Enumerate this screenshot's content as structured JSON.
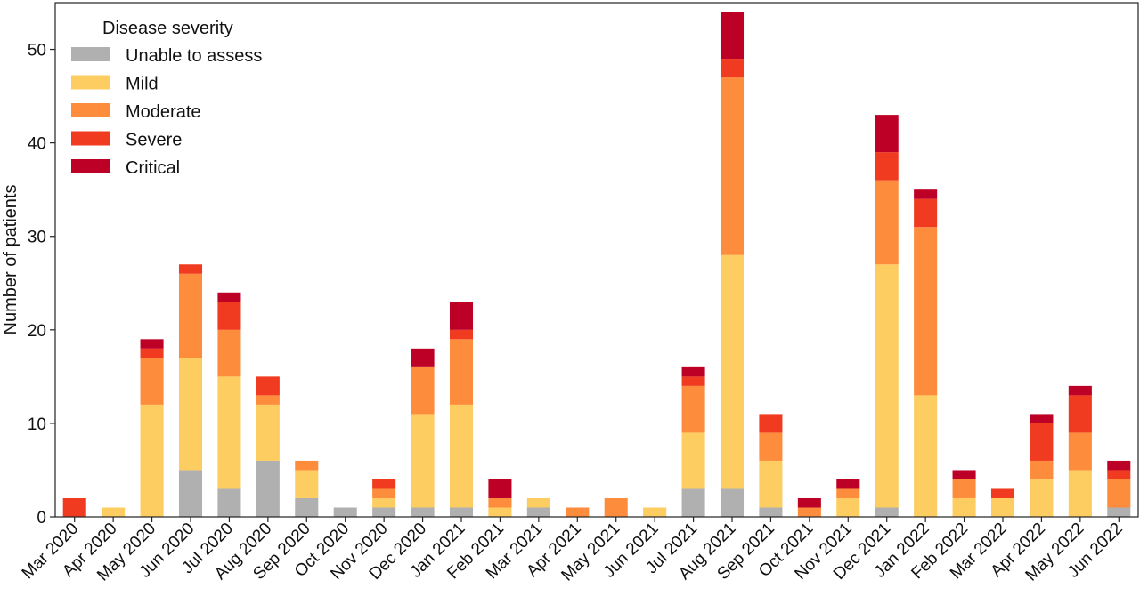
{
  "chart_data": {
    "type": "bar",
    "stacked": true,
    "ylabel": "Number of patients",
    "xlabel": "",
    "ylim": [
      0,
      55
    ],
    "yticks": [
      0,
      10,
      20,
      30,
      40,
      50
    ],
    "grid": false,
    "legend": {
      "title": "Disease severity",
      "placement": "top-left"
    },
    "categories": [
      "Mar 2020",
      "Apr 2020",
      "May 2020",
      "Jun 2020",
      "Jul 2020",
      "Aug 2020",
      "Sep 2020",
      "Oct 2020",
      "Nov 2020",
      "Dec 2020",
      "Jan 2021",
      "Feb 2021",
      "Mar 2021",
      "Apr 2021",
      "May 2021",
      "Jun 2021",
      "Jul 2021",
      "Aug 2021",
      "Sep 2021",
      "Oct 2021",
      "Nov 2021",
      "Dec 2021",
      "Jan 2022",
      "Feb 2022",
      "Mar 2022",
      "Apr 2022",
      "May 2022",
      "Jun 2022"
    ],
    "series": [
      {
        "name": "Unable to assess",
        "color": "#b0b0b0",
        "values": [
          0,
          0,
          0,
          5,
          3,
          6,
          2,
          1,
          1,
          1,
          1,
          0,
          1,
          0,
          0,
          0,
          3,
          3,
          1,
          0,
          0,
          1,
          0,
          0,
          0,
          0,
          0,
          1
        ]
      },
      {
        "name": "Mild",
        "color": "#fdcd62",
        "values": [
          0,
          1,
          12,
          12,
          12,
          6,
          3,
          0,
          1,
          10,
          11,
          1,
          1,
          0,
          0,
          1,
          6,
          25,
          5,
          0,
          2,
          26,
          13,
          2,
          2,
          4,
          5,
          0
        ]
      },
      {
        "name": "Moderate",
        "color": "#fd8c3c",
        "values": [
          0,
          0,
          5,
          9,
          5,
          1,
          1,
          0,
          1,
          5,
          7,
          1,
          0,
          1,
          2,
          0,
          5,
          19,
          3,
          1,
          1,
          9,
          18,
          2,
          0,
          2,
          4,
          3
        ]
      },
      {
        "name": "Severe",
        "color": "#f03b20",
        "values": [
          2,
          0,
          1,
          1,
          3,
          2,
          0,
          0,
          1,
          0,
          1,
          0,
          0,
          0,
          0,
          0,
          1,
          2,
          2,
          0,
          0,
          3,
          3,
          0,
          1,
          4,
          4,
          1
        ]
      },
      {
        "name": "Critical",
        "color": "#bd0026",
        "values": [
          0,
          0,
          1,
          0,
          1,
          0,
          0,
          0,
          0,
          2,
          3,
          2,
          0,
          0,
          0,
          0,
          1,
          5,
          0,
          1,
          1,
          4,
          1,
          1,
          0,
          1,
          1,
          1
        ]
      }
    ]
  }
}
